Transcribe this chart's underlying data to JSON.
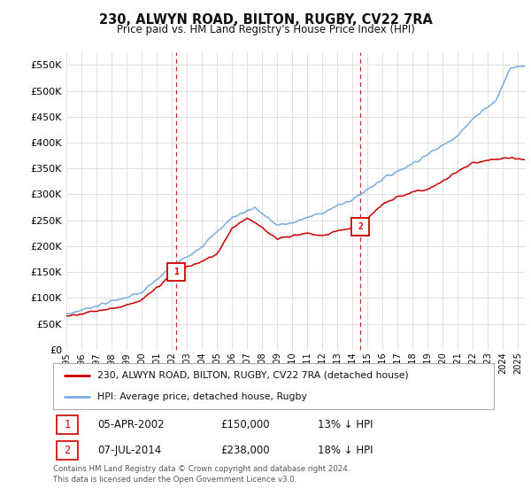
{
  "title": "230, ALWYN ROAD, BILTON, RUGBY, CV22 7RA",
  "subtitle": "Price paid vs. HM Land Registry's House Price Index (HPI)",
  "ylabel_ticks": [
    "£0",
    "£50K",
    "£100K",
    "£150K",
    "£200K",
    "£250K",
    "£300K",
    "£350K",
    "£400K",
    "£450K",
    "£500K",
    "£550K"
  ],
  "ytick_values": [
    0,
    50000,
    100000,
    150000,
    200000,
    250000,
    300000,
    350000,
    400000,
    450000,
    500000,
    550000
  ],
  "ylim": [
    0,
    575000
  ],
  "xlim_start": 1995.0,
  "xlim_end": 2025.5,
  "transaction1": {
    "date_x": 2002.27,
    "price": 150000,
    "label": "1",
    "text": "05-APR-2002",
    "amount": "£150,000",
    "pct": "13% ↓ HPI"
  },
  "transaction2": {
    "date_x": 2014.52,
    "price": 238000,
    "label": "2",
    "text": "07-JUL-2014",
    "amount": "£238,000",
    "pct": "18% ↓ HPI"
  },
  "legend_line1": "230, ALWYN ROAD, BILTON, RUGBY, CV22 7RA (detached house)",
  "legend_line2": "HPI: Average price, detached house, Rugby",
  "footer": "Contains HM Land Registry data © Crown copyright and database right 2024.\nThis data is licensed under the Open Government Licence v3.0.",
  "line_color_red": "#cc0000",
  "line_color_blue": "#7aade0",
  "vline_color": "#cc0000",
  "background_color": "#ffffff",
  "grid_color": "#e0e0e0"
}
